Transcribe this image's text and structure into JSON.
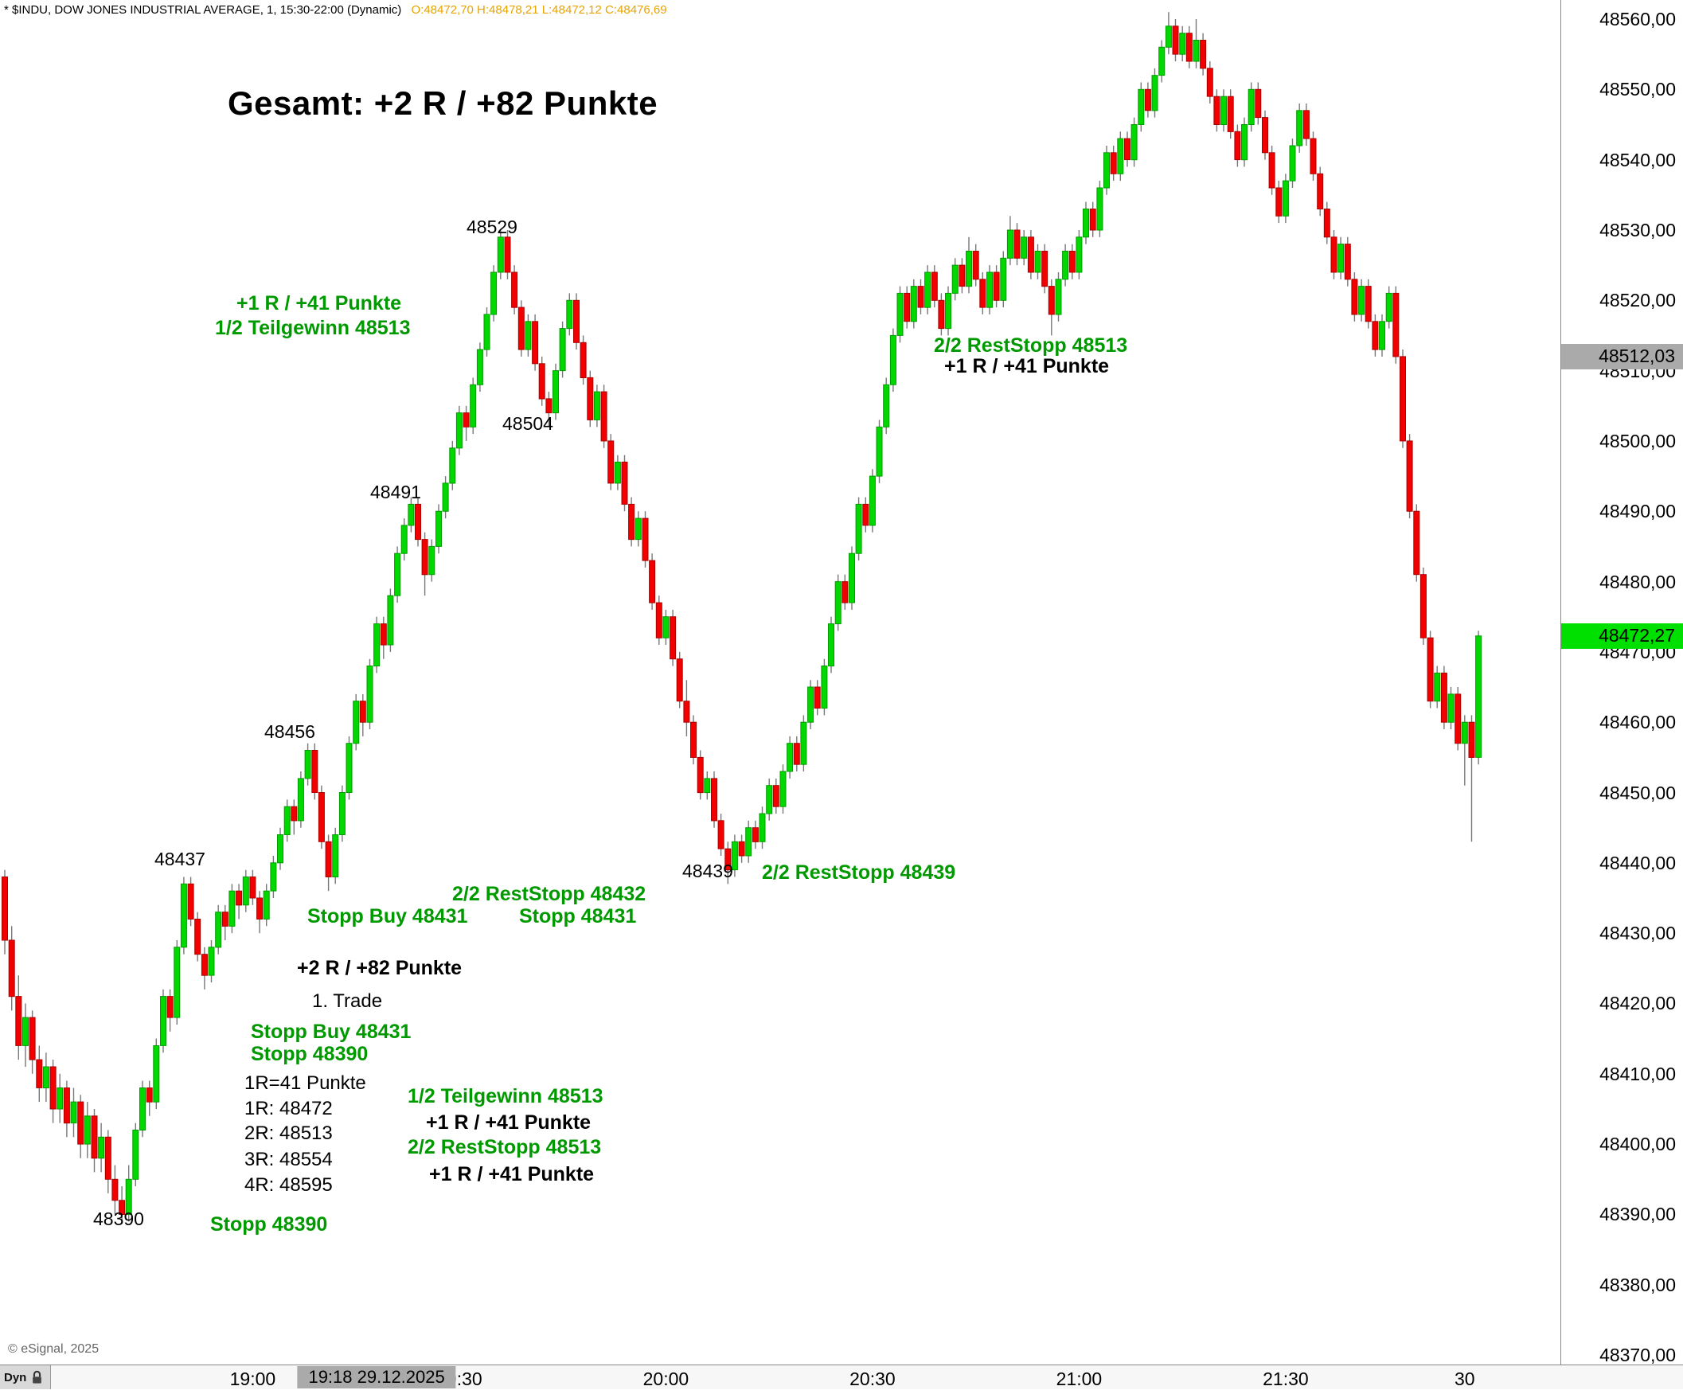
{
  "header": {
    "symbol_line": "* $INDU, DOW JONES INDUSTRIAL AVERAGE, 1, 15:30-22:00 (Dynamic)",
    "ohlc": "O:48472,70 H:48478,21 L:48472,12 C:48476,69"
  },
  "footer": {
    "copyright": "© eSignal, 2025",
    "dyn_label": "Dyn"
  },
  "colors": {
    "up": "#00d800",
    "up_stroke": "#009c00",
    "down": "#f20000",
    "down_stroke": "#aa0000",
    "wick": "#787878",
    "green_text": "#009900",
    "highlight_gray": "#aaaaaa",
    "highlight_green": "#00e000"
  },
  "annotations": [
    {
      "text": "Gesamt: +2 R / +82 Punkte"
    },
    {
      "text": "48529"
    },
    {
      "text": "+1 R / +41 Punkte"
    },
    {
      "text": "1/2 Teilgewinn 48513"
    },
    {
      "text": "48504"
    },
    {
      "text": "48491"
    },
    {
      "text": "2/2 RestStopp 48513"
    },
    {
      "text": "+1 R / +41 Punkte"
    },
    {
      "text": "48456"
    },
    {
      "text": "48437"
    },
    {
      "text": "48439"
    },
    {
      "text": "2/2 RestStopp 48439"
    },
    {
      "text": "2/2 RestStopp 48432"
    },
    {
      "text": "Stopp Buy 48431"
    },
    {
      "text": "Stopp 48431"
    },
    {
      "text": "+2 R / +82 Punkte"
    },
    {
      "text": "1. Trade"
    },
    {
      "text": "Stopp Buy 48431"
    },
    {
      "text": "Stopp 48390"
    },
    {
      "text": "1R=41 Punkte"
    },
    {
      "text": "1R: 48472"
    },
    {
      "text": "2R: 48513"
    },
    {
      "text": "3R: 48554"
    },
    {
      "text": "4R: 48595"
    },
    {
      "text": "1/2 Teilgewinn 48513"
    },
    {
      "text": "+1 R / +41 Punkte"
    },
    {
      "text": "2/2 RestStopp 48513"
    },
    {
      "text": "+1 R / +41 Punkte"
    },
    {
      "text": "48390"
    },
    {
      "text": "Stopp 48390"
    }
  ],
  "chart_data": {
    "type": "candlestick",
    "symbol": "$INDU",
    "name": "DOW JONES INDUSTRIAL AVERAGE",
    "interval": "1",
    "session": "15:30-22:00 (Dynamic)",
    "current_bar": {
      "open": 48472.7,
      "high": 48478.21,
      "low": 48472.12,
      "close": 48476.69
    },
    "y_axis": {
      "min": 48370,
      "max": 48560,
      "step": 10,
      "tick_labels": [
        "48560,00",
        "48550,00",
        "48540,00",
        "48530,00",
        "48520,00",
        "48510,00",
        "48500,00",
        "48490,00",
        "48480,00",
        "48470,00",
        "48460,00",
        "48450,00",
        "48440,00",
        "48430,00",
        "48420,00",
        "48410,00",
        "48400,00",
        "48390,00",
        "48380,00",
        "48370,00"
      ]
    },
    "x_ticks": [
      {
        "label": "19:00",
        "minute": 36
      },
      {
        "label": "19:30",
        "minute": 66
      },
      {
        "label": "20:00",
        "minute": 96
      },
      {
        "label": "20:30",
        "minute": 126
      },
      {
        "label": "21:00",
        "minute": 156
      },
      {
        "label": "21:30",
        "minute": 186
      },
      {
        "label": "30",
        "minute": 212
      }
    ],
    "crosshair": {
      "price": 48512.03,
      "price_label": "48512,03",
      "time_label": "19:18 29.12.2025",
      "minute_index": 54
    },
    "last": {
      "price": 48472.27,
      "label": "48472,27"
    },
    "candles": [
      [
        48438,
        48439,
        48427,
        48429
      ],
      [
        48429,
        48431,
        48419,
        48421
      ],
      [
        48421,
        48424,
        48412,
        48414
      ],
      [
        48414,
        48420,
        48411,
        48418
      ],
      [
        48418,
        48419,
        48410,
        48412
      ],
      [
        48412,
        48414,
        48406,
        48408
      ],
      [
        48408,
        48413,
        48406,
        48411
      ],
      [
        48411,
        48412,
        48403,
        48405
      ],
      [
        48405,
        48410,
        48403,
        48408
      ],
      [
        48408,
        48409,
        48401,
        48403
      ],
      [
        48403,
        48408,
        48401,
        48406
      ],
      [
        48406,
        48407,
        48398,
        48400
      ],
      [
        48400,
        48406,
        48398,
        48404
      ],
      [
        48404,
        48405,
        48396,
        48398
      ],
      [
        48398,
        48403,
        48396,
        48401
      ],
      [
        48401,
        48402,
        48393,
        48395
      ],
      [
        48395,
        48397,
        48390,
        48392
      ],
      [
        48392,
        48394,
        48389,
        48390
      ],
      [
        48390,
        48397,
        48389,
        48395
      ],
      [
        48395,
        48403,
        48394,
        48402
      ],
      [
        48402,
        48409,
        48401,
        48408
      ],
      [
        48408,
        48409,
        48404,
        48406
      ],
      [
        48406,
        48415,
        48405,
        48414
      ],
      [
        48414,
        48422,
        48413,
        48421
      ],
      [
        48421,
        48422,
        48416,
        48418
      ],
      [
        48418,
        48429,
        48417,
        48428
      ],
      [
        48428,
        48438,
        48427,
        48437
      ],
      [
        48437,
        48438,
        48431,
        48432
      ],
      [
        48432,
        48433,
        48426,
        48427
      ],
      [
        48427,
        48428,
        48422,
        48424
      ],
      [
        48424,
        48429,
        48423,
        48428
      ],
      [
        48428,
        48434,
        48427,
        48433
      ],
      [
        48433,
        48434,
        48429,
        48431
      ],
      [
        48431,
        48437,
        48430,
        48436
      ],
      [
        48436,
        48437,
        48432,
        48434
      ],
      [
        48434,
        48439,
        48433,
        48438
      ],
      [
        48438,
        48439,
        48434,
        48435
      ],
      [
        48435,
        48436,
        48430,
        48432
      ],
      [
        48432,
        48437,
        48431,
        48436
      ],
      [
        48436,
        48441,
        48435,
        48440
      ],
      [
        48440,
        48445,
        48439,
        48444
      ],
      [
        48444,
        48449,
        48443,
        48448
      ],
      [
        48448,
        48449,
        48444,
        48446
      ],
      [
        48446,
        48453,
        48445,
        48452
      ],
      [
        48452,
        48457,
        48451,
        48456
      ],
      [
        48456,
        48457,
        48449,
        48450
      ],
      [
        48450,
        48451,
        48442,
        48443
      ],
      [
        48443,
        48444,
        48436,
        48438
      ],
      [
        48438,
        48445,
        48437,
        48444
      ],
      [
        48444,
        48451,
        48443,
        48450
      ],
      [
        48450,
        48458,
        48449,
        48457
      ],
      [
        48457,
        48464,
        48456,
        48463
      ],
      [
        48463,
        48464,
        48458,
        48460
      ],
      [
        48460,
        48469,
        48459,
        48468
      ],
      [
        48468,
        48475,
        48467,
        48474
      ],
      [
        48474,
        48475,
        48469,
        48471
      ],
      [
        48471,
        48479,
        48470,
        48478
      ],
      [
        48478,
        48485,
        48477,
        48484
      ],
      [
        48484,
        48489,
        48483,
        48488
      ],
      [
        48488,
        48492,
        48487,
        48491
      ],
      [
        48491,
        48492,
        48485,
        48486
      ],
      [
        48486,
        48487,
        48478,
        48481
      ],
      [
        48481,
        48486,
        48480,
        48485
      ],
      [
        48485,
        48491,
        48484,
        48490
      ],
      [
        48490,
        48495,
        48489,
        48494
      ],
      [
        48494,
        48500,
        48493,
        48499
      ],
      [
        48499,
        48505,
        48498,
        48504
      ],
      [
        48504,
        48505,
        48500,
        48502
      ],
      [
        48502,
        48509,
        48501,
        48508
      ],
      [
        48508,
        48514,
        48507,
        48513
      ],
      [
        48513,
        48519,
        48512,
        48518
      ],
      [
        48518,
        48525,
        48517,
        48524
      ],
      [
        48524,
        48530,
        48523,
        48529
      ],
      [
        48529,
        48530,
        48523,
        48524
      ],
      [
        48524,
        48525,
        48518,
        48519
      ],
      [
        48519,
        48520,
        48512,
        48513
      ],
      [
        48513,
        48518,
        48512,
        48517
      ],
      [
        48517,
        48518,
        48510,
        48511
      ],
      [
        48511,
        48512,
        48505,
        48506
      ],
      [
        48506,
        48507,
        48502,
        48504
      ],
      [
        48504,
        48511,
        48503,
        48510
      ],
      [
        48510,
        48517,
        48509,
        48516
      ],
      [
        48516,
        48521,
        48515,
        48520
      ],
      [
        48520,
        48521,
        48513,
        48514
      ],
      [
        48514,
        48515,
        48508,
        48509
      ],
      [
        48509,
        48510,
        48502,
        48503
      ],
      [
        48503,
        48508,
        48502,
        48507
      ],
      [
        48507,
        48508,
        48499,
        48500
      ],
      [
        48500,
        48501,
        48493,
        48494
      ],
      [
        48494,
        48498,
        48493,
        48497
      ],
      [
        48497,
        48498,
        48490,
        48491
      ],
      [
        48491,
        48492,
        48485,
        48486
      ],
      [
        48486,
        48490,
        48485,
        48489
      ],
      [
        48489,
        48490,
        48482,
        48483
      ],
      [
        48483,
        48484,
        48476,
        48477
      ],
      [
        48477,
        48478,
        48471,
        48472
      ],
      [
        48472,
        48476,
        48471,
        48475
      ],
      [
        48475,
        48476,
        48468,
        48469
      ],
      [
        48469,
        48470,
        48462,
        48463
      ],
      [
        48463,
        48466,
        48458,
        48460
      ],
      [
        48460,
        48461,
        48454,
        48455
      ],
      [
        48455,
        48456,
        48449,
        48450
      ],
      [
        48450,
        48453,
        48449,
        48452
      ],
      [
        48452,
        48453,
        48445,
        48446
      ],
      [
        48446,
        48447,
        48441,
        48442
      ],
      [
        48442,
        48443,
        48437,
        48439
      ],
      [
        48439,
        48444,
        48438,
        48443
      ],
      [
        48443,
        48444,
        48440,
        48441
      ],
      [
        48441,
        48446,
        48440,
        48445
      ],
      [
        48445,
        48446,
        48442,
        48443
      ],
      [
        48443,
        48448,
        48442,
        48447
      ],
      [
        48447,
        48452,
        48446,
        48451
      ],
      [
        48451,
        48452,
        48447,
        48448
      ],
      [
        48448,
        48454,
        48447,
        48453
      ],
      [
        48453,
        48458,
        48452,
        48457
      ],
      [
        48457,
        48458,
        48453,
        48454
      ],
      [
        48454,
        48461,
        48453,
        48460
      ],
      [
        48460,
        48466,
        48459,
        48465
      ],
      [
        48465,
        48466,
        48461,
        48462
      ],
      [
        48462,
        48469,
        48461,
        48468
      ],
      [
        48468,
        48475,
        48467,
        48474
      ],
      [
        48474,
        48481,
        48473,
        48480
      ],
      [
        48480,
        48481,
        48476,
        48477
      ],
      [
        48477,
        48485,
        48476,
        48484
      ],
      [
        48484,
        48492,
        48483,
        48491
      ],
      [
        48491,
        48492,
        48487,
        48488
      ],
      [
        48488,
        48496,
        48487,
        48495
      ],
      [
        48495,
        48503,
        48494,
        48502
      ],
      [
        48502,
        48509,
        48501,
        48508
      ],
      [
        48508,
        48516,
        48507,
        48515
      ],
      [
        48515,
        48522,
        48514,
        48521
      ],
      [
        48521,
        48522,
        48516,
        48517
      ],
      [
        48517,
        48523,
        48516,
        48522
      ],
      [
        48522,
        48523,
        48518,
        48519
      ],
      [
        48519,
        48525,
        48518,
        48524
      ],
      [
        48524,
        48525,
        48519,
        48520
      ],
      [
        48520,
        48521,
        48515,
        48516
      ],
      [
        48516,
        48522,
        48515,
        48521
      ],
      [
        48521,
        48526,
        48520,
        48525
      ],
      [
        48525,
        48526,
        48521,
        48522
      ],
      [
        48522,
        48529,
        48521,
        48527
      ],
      [
        48527,
        48528,
        48522,
        48523
      ],
      [
        48523,
        48524,
        48518,
        48519
      ],
      [
        48519,
        48525,
        48518,
        48524
      ],
      [
        48524,
        48525,
        48519,
        48520
      ],
      [
        48520,
        48527,
        48519,
        48526
      ],
      [
        48526,
        48532,
        48525,
        48530
      ],
      [
        48530,
        48531,
        48525,
        48526
      ],
      [
        48526,
        48530,
        48525,
        48529
      ],
      [
        48529,
        48530,
        48523,
        48524
      ],
      [
        48524,
        48528,
        48523,
        48527
      ],
      [
        48527,
        48528,
        48521,
        48522
      ],
      [
        48522,
        48523,
        48515,
        48518
      ],
      [
        48518,
        48524,
        48517,
        48523
      ],
      [
        48523,
        48528,
        48522,
        48527
      ],
      [
        48527,
        48528,
        48523,
        48524
      ],
      [
        48524,
        48530,
        48523,
        48529
      ],
      [
        48529,
        48534,
        48528,
        48533
      ],
      [
        48533,
        48534,
        48529,
        48530
      ],
      [
        48530,
        48537,
        48529,
        48536
      ],
      [
        48536,
        48542,
        48535,
        48541
      ],
      [
        48541,
        48542,
        48537,
        48538
      ],
      [
        48538,
        48544,
        48537,
        48543
      ],
      [
        48543,
        48544,
        48539,
        48540
      ],
      [
        48540,
        48546,
        48539,
        48545
      ],
      [
        48545,
        48551,
        48544,
        48550
      ],
      [
        48550,
        48551,
        48546,
        48547
      ],
      [
        48547,
        48553,
        48546,
        48552
      ],
      [
        48552,
        48557,
        48551,
        48556
      ],
      [
        48556,
        48561,
        48555,
        48559
      ],
      [
        48559,
        48560,
        48554,
        48555
      ],
      [
        48555,
        48559,
        48554,
        48558
      ],
      [
        48558,
        48559,
        48553,
        48554
      ],
      [
        48554,
        48560,
        48553,
        48557
      ],
      [
        48557,
        48558,
        48552,
        48553
      ],
      [
        48553,
        48554,
        48548,
        48549
      ],
      [
        48549,
        48550,
        48544,
        48545
      ],
      [
        48545,
        48550,
        48544,
        48549
      ],
      [
        48549,
        48550,
        48543,
        48544
      ],
      [
        48544,
        48545,
        48539,
        48540
      ],
      [
        48540,
        48546,
        48539,
        48545
      ],
      [
        48545,
        48551,
        48544,
        48550
      ],
      [
        48550,
        48551,
        48545,
        48546
      ],
      [
        48546,
        48547,
        48540,
        48541
      ],
      [
        48541,
        48542,
        48535,
        48536
      ],
      [
        48536,
        48537,
        48531,
        48532
      ],
      [
        48532,
        48538,
        48531,
        48537
      ],
      [
        48537,
        48543,
        48536,
        48542
      ],
      [
        48542,
        48548,
        48541,
        48547
      ],
      [
        48547,
        48548,
        48542,
        48543
      ],
      [
        48543,
        48544,
        48537,
        48538
      ],
      [
        48538,
        48539,
        48532,
        48533
      ],
      [
        48533,
        48534,
        48528,
        48529
      ],
      [
        48529,
        48530,
        48523,
        48524
      ],
      [
        48524,
        48529,
        48523,
        48528
      ],
      [
        48528,
        48529,
        48522,
        48523
      ],
      [
        48523,
        48524,
        48517,
        48518
      ],
      [
        48518,
        48523,
        48517,
        48522
      ],
      [
        48522,
        48523,
        48516,
        48517
      ],
      [
        48517,
        48518,
        48512,
        48513
      ],
      [
        48513,
        48518,
        48512,
        48517
      ],
      [
        48517,
        48522,
        48516,
        48521
      ],
      [
        48521,
        48522,
        48511,
        48512
      ],
      [
        48512,
        48513,
        48499,
        48500
      ],
      [
        48500,
        48501,
        48489,
        48490
      ],
      [
        48490,
        48491,
        48480,
        48481
      ],
      [
        48481,
        48482,
        48471,
        48472
      ],
      [
        48472,
        48473,
        48462,
        48463
      ],
      [
        48463,
        48468,
        48462,
        48467
      ],
      [
        48467,
        48468,
        48459,
        48460
      ],
      [
        48460,
        48465,
        48459,
        48464
      ],
      [
        48464,
        48465,
        48456,
        48457
      ],
      [
        48457,
        48461,
        48451,
        48460
      ],
      [
        48460,
        48461,
        48443,
        48455
      ],
      [
        48455,
        48473,
        48454,
        48472.27
      ]
    ]
  }
}
